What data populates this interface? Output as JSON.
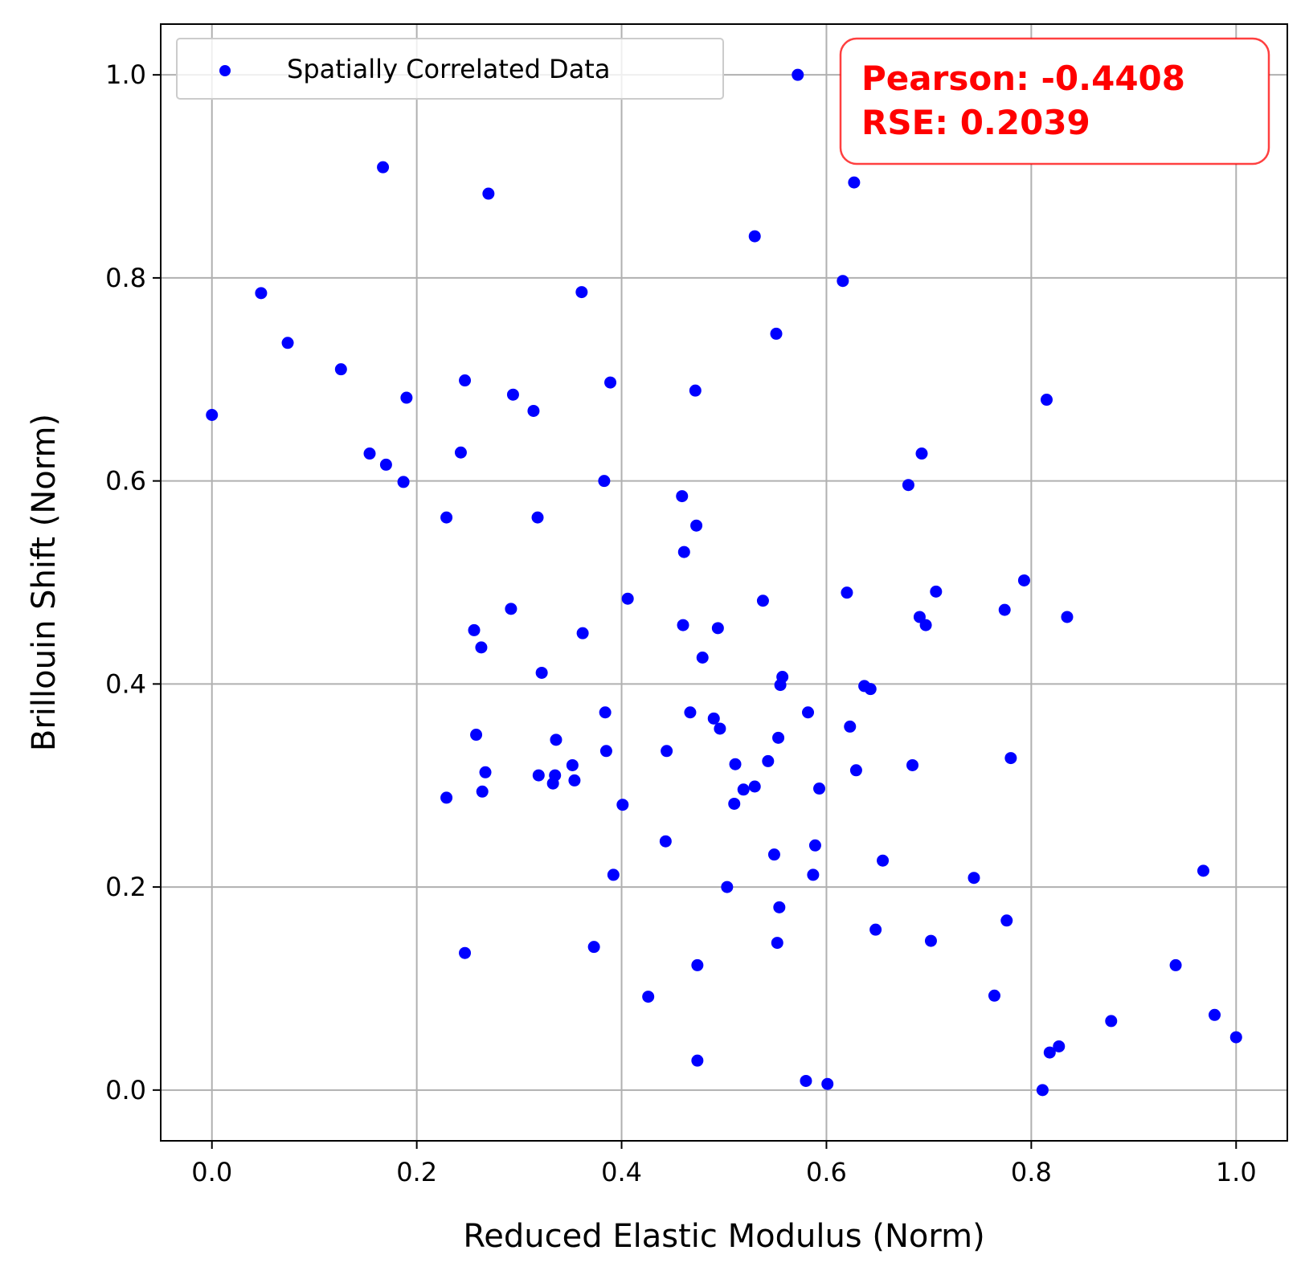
{
  "chart_data": {
    "type": "scatter",
    "xlabel": "Reduced Elastic Modulus (Norm)",
    "ylabel": "Brillouin Shift (Norm)",
    "xlim": [
      -0.05,
      1.05
    ],
    "ylim": [
      -0.05,
      1.05
    ],
    "xticks": [
      0.0,
      0.2,
      0.4,
      0.6,
      0.8,
      1.0
    ],
    "yticks": [
      0.0,
      0.2,
      0.4,
      0.6,
      0.8,
      1.0
    ],
    "xtick_labels": [
      "0.0",
      "0.2",
      "0.4",
      "0.6",
      "0.8",
      "1.0"
    ],
    "ytick_labels": [
      "0.0",
      "0.2",
      "0.4",
      "0.6",
      "0.8",
      "1.0"
    ],
    "grid": true,
    "legend": {
      "position": "top-left",
      "entries": [
        "Spatially Correlated Data"
      ]
    },
    "annotation": {
      "position": "top-right",
      "lines": [
        "Pearson: -0.4408",
        "RSE: 0.2039"
      ],
      "color": "#ff0000"
    },
    "series": [
      {
        "name": "Spatially Correlated Data",
        "color": "#0000ff",
        "points": [
          [
            0.0,
            0.665
          ],
          [
            0.048,
            0.785
          ],
          [
            0.074,
            0.736
          ],
          [
            0.126,
            0.71
          ],
          [
            0.154,
            0.627
          ],
          [
            0.167,
            0.909
          ],
          [
            0.17,
            0.616
          ],
          [
            0.187,
            0.599
          ],
          [
            0.19,
            0.682
          ],
          [
            0.229,
            0.564
          ],
          [
            0.229,
            0.288
          ],
          [
            0.243,
            0.628
          ],
          [
            0.247,
            0.699
          ],
          [
            0.247,
            0.135
          ],
          [
            0.256,
            0.453
          ],
          [
            0.258,
            0.35
          ],
          [
            0.263,
            0.436
          ],
          [
            0.264,
            0.294
          ],
          [
            0.267,
            0.313
          ],
          [
            0.27,
            0.883
          ],
          [
            0.292,
            0.474
          ],
          [
            0.294,
            0.685
          ],
          [
            0.314,
            0.669
          ],
          [
            0.318,
            0.564
          ],
          [
            0.319,
            0.31
          ],
          [
            0.322,
            0.411
          ],
          [
            0.333,
            0.302
          ],
          [
            0.335,
            0.31
          ],
          [
            0.336,
            0.345
          ],
          [
            0.352,
            0.32
          ],
          [
            0.354,
            0.305
          ],
          [
            0.361,
            0.786
          ],
          [
            0.362,
            0.45
          ],
          [
            0.373,
            0.141
          ],
          [
            0.383,
            0.6
          ],
          [
            0.384,
            0.372
          ],
          [
            0.385,
            0.334
          ],
          [
            0.389,
            0.697
          ],
          [
            0.392,
            0.212
          ],
          [
            0.401,
            0.281
          ],
          [
            0.406,
            0.484
          ],
          [
            0.426,
            0.092
          ],
          [
            0.443,
            0.245
          ],
          [
            0.444,
            0.334
          ],
          [
            0.459,
            0.585
          ],
          [
            0.46,
            0.458
          ],
          [
            0.461,
            0.53
          ],
          [
            0.467,
            0.372
          ],
          [
            0.472,
            0.689
          ],
          [
            0.473,
            0.556
          ],
          [
            0.474,
            0.123
          ],
          [
            0.474,
            0.029
          ],
          [
            0.479,
            0.426
          ],
          [
            0.49,
            0.366
          ],
          [
            0.494,
            0.455
          ],
          [
            0.496,
            0.356
          ],
          [
            0.503,
            0.2
          ],
          [
            0.51,
            0.282
          ],
          [
            0.511,
            0.321
          ],
          [
            0.519,
            0.296
          ],
          [
            0.53,
            0.841
          ],
          [
            0.53,
            0.299
          ],
          [
            0.538,
            0.482
          ],
          [
            0.543,
            0.324
          ],
          [
            0.549,
            0.232
          ],
          [
            0.551,
            0.745
          ],
          [
            0.552,
            0.145
          ],
          [
            0.553,
            0.347
          ],
          [
            0.554,
            0.18
          ],
          [
            0.555,
            0.399
          ],
          [
            0.557,
            0.407
          ],
          [
            0.572,
            1.0
          ],
          [
            0.58,
            0.009
          ],
          [
            0.582,
            0.372
          ],
          [
            0.587,
            0.212
          ],
          [
            0.589,
            0.241
          ],
          [
            0.593,
            0.297
          ],
          [
            0.601,
            0.006
          ],
          [
            0.616,
            0.797
          ],
          [
            0.62,
            0.49
          ],
          [
            0.623,
            0.358
          ],
          [
            0.627,
            0.894
          ],
          [
            0.629,
            0.315
          ],
          [
            0.637,
            0.398
          ],
          [
            0.643,
            0.395
          ],
          [
            0.648,
            0.158
          ],
          [
            0.655,
            0.226
          ],
          [
            0.68,
            0.596
          ],
          [
            0.684,
            0.32
          ],
          [
            0.691,
            0.466
          ],
          [
            0.693,
            0.627
          ],
          [
            0.697,
            0.458
          ],
          [
            0.702,
            0.147
          ],
          [
            0.707,
            0.491
          ],
          [
            0.744,
            0.209
          ],
          [
            0.764,
            0.093
          ],
          [
            0.774,
            0.473
          ],
          [
            0.776,
            0.167
          ],
          [
            0.78,
            0.327
          ],
          [
            0.793,
            0.502
          ],
          [
            0.811,
            0.0
          ],
          [
            0.815,
            0.68
          ],
          [
            0.818,
            0.037
          ],
          [
            0.827,
            0.043
          ],
          [
            0.835,
            0.466
          ],
          [
            0.878,
            0.068
          ],
          [
            0.941,
            0.123
          ],
          [
            0.968,
            0.216
          ],
          [
            0.979,
            0.074
          ],
          [
            1.0,
            0.052
          ]
        ]
      }
    ]
  }
}
